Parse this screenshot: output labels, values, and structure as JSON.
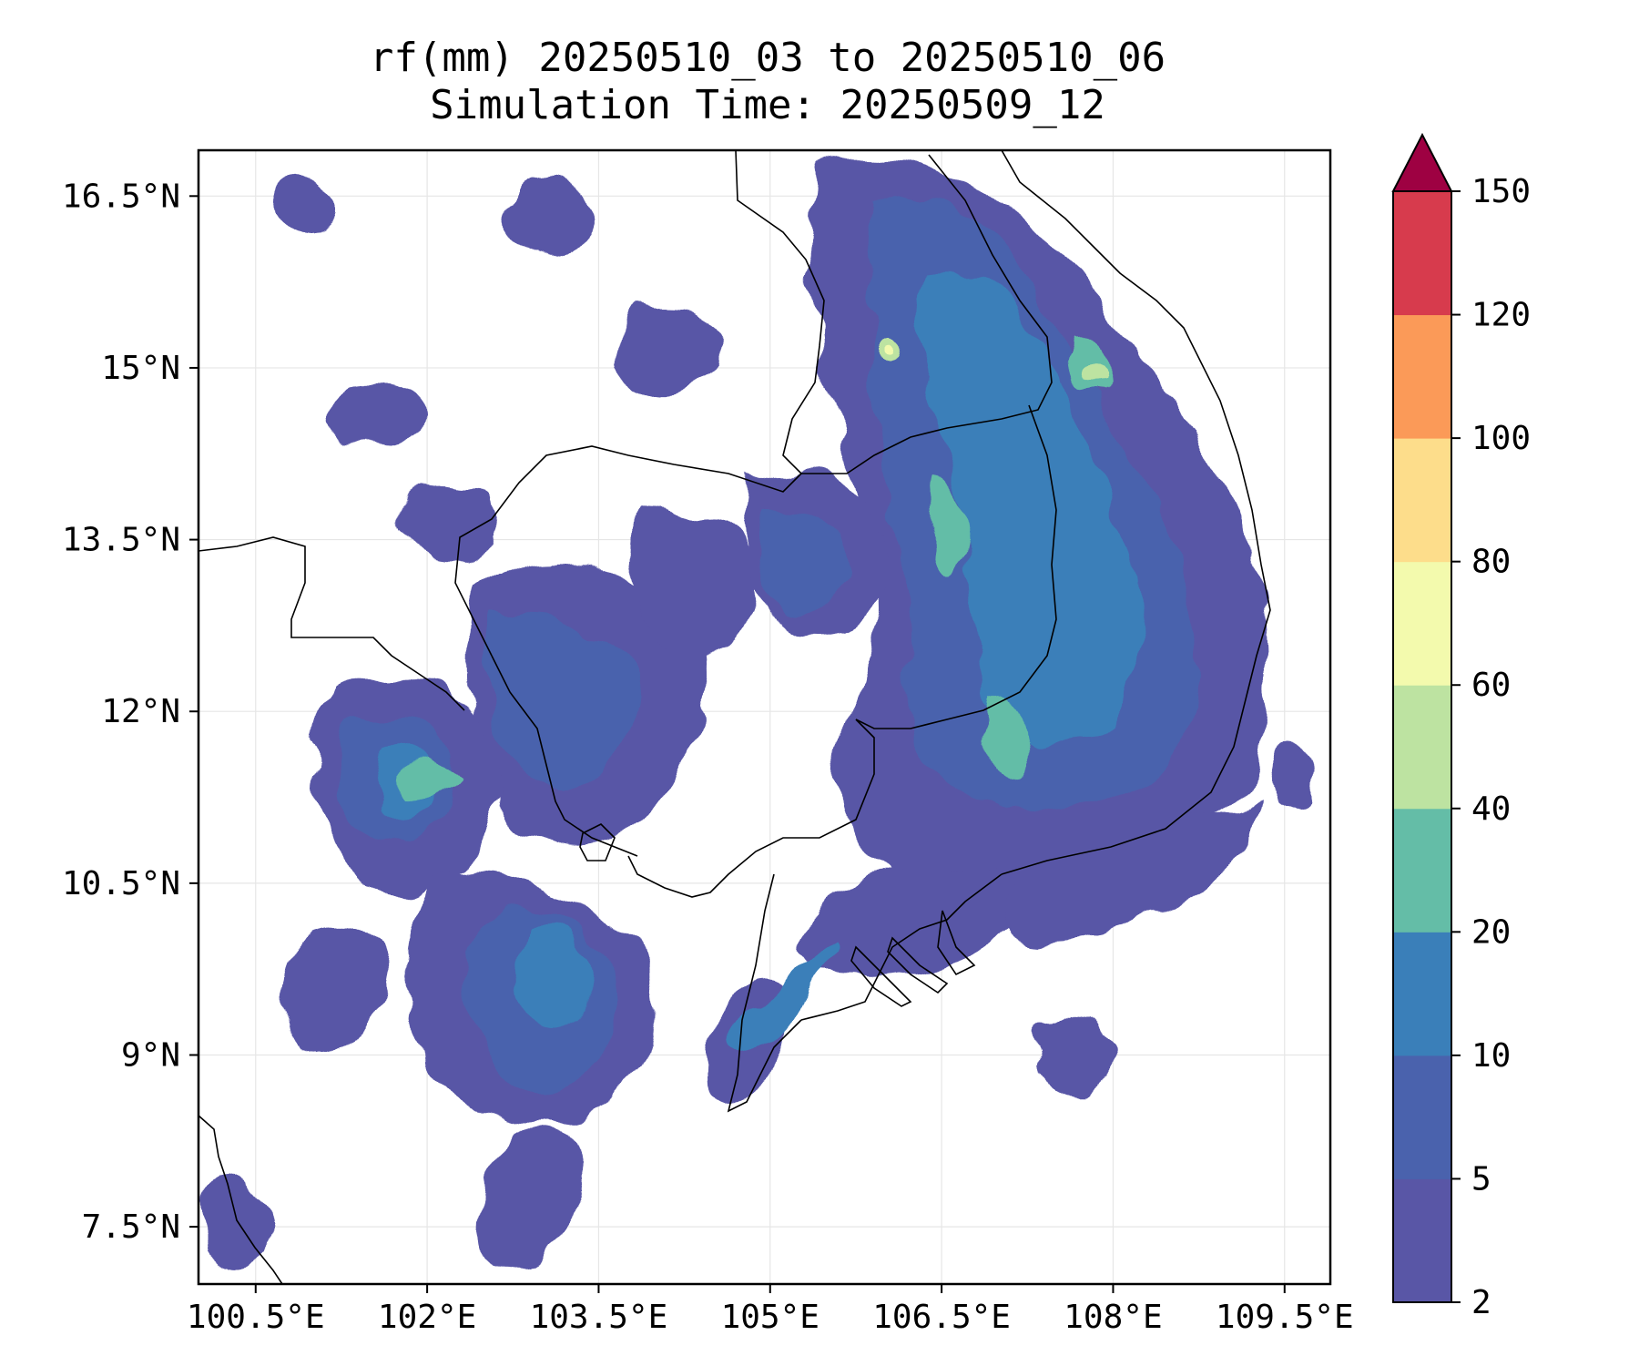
{
  "title": {
    "line1": "rf(mm) 20250510_03 to 20250510_06",
    "line2": "Simulation Time: 20250509_12"
  },
  "map": {
    "lon_range": [
      100.0,
      109.9
    ],
    "lat_range": [
      7.0,
      16.9
    ],
    "lon_ticks": [
      "100.5°E",
      "102°E",
      "103.5°E",
      "105°E",
      "106.5°E",
      "108°E",
      "109.5°E"
    ],
    "lon_tick_values": [
      100.5,
      102,
      103.5,
      105,
      106.5,
      108,
      109.5
    ],
    "lat_ticks": [
      "16.5°N",
      "15°N",
      "13.5°N",
      "12°N",
      "10.5°N",
      "9°N",
      "7.5°N"
    ],
    "lat_tick_values": [
      16.5,
      15,
      13.5,
      12,
      10.5,
      9,
      7.5
    ],
    "gridlines": true
  },
  "colorbar": {
    "levels": [
      2,
      5,
      10,
      20,
      40,
      60,
      80,
      100,
      120,
      150
    ],
    "labels": [
      "2",
      "5",
      "10",
      "20",
      "40",
      "60",
      "80",
      "100",
      "120",
      "150"
    ],
    "colors": [
      "#5956a6",
      "#4a62ad",
      "#3a7fb9",
      "#64bda7",
      "#bde3a1",
      "#f3faad",
      "#fddd8b",
      "#fb9a58",
      "#d73b4d"
    ],
    "extend_color": "#9e0142",
    "extend": "max"
  }
}
